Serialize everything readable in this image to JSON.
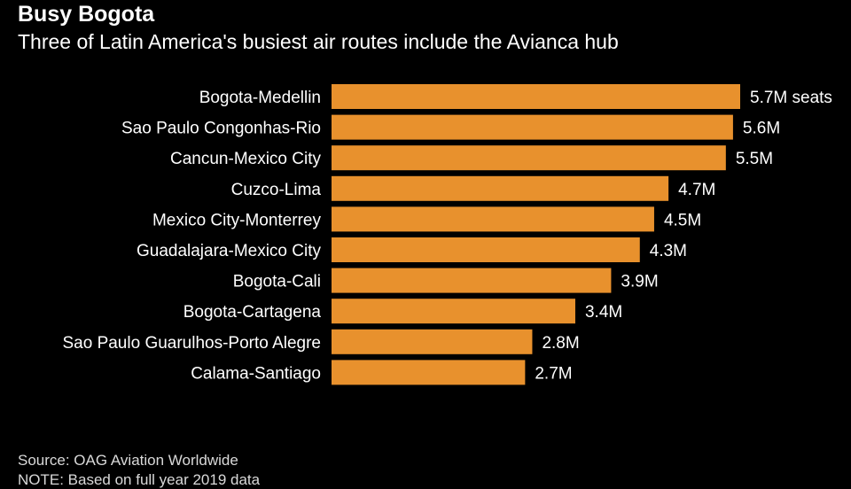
{
  "colors": {
    "background": "#000000",
    "bar": "#e8912d",
    "text": "#ffffff"
  },
  "chart_data": {
    "type": "bar",
    "orientation": "horizontal",
    "title": "Busy Bogota",
    "subtitle": "Three of Latin America's busiest air routes include the Avianca hub",
    "categories": [
      "Bogota-Medellin",
      "Sao Paulo Congonhas-Rio",
      "Cancun-Mexico City",
      "Cuzco-Lima",
      "Mexico City-Monterrey",
      "Guadalajara-Mexico City",
      "Bogota-Cali",
      "Bogota-Cartagena",
      "Sao Paulo Guarulhos-Porto Alegre",
      "Calama-Santiago"
    ],
    "values": [
      5.7,
      5.6,
      5.5,
      4.7,
      4.5,
      4.3,
      3.9,
      3.4,
      2.8,
      2.7
    ],
    "data_labels": [
      "5.7M seats",
      "5.6M",
      "5.5M",
      "4.7M",
      "4.5M",
      "4.3M",
      "3.9M",
      "3.4M",
      "2.8M",
      "2.7M"
    ],
    "unit": "M seats",
    "xlim": [
      0,
      5.7
    ],
    "grid": false,
    "legend": "none"
  },
  "footer": {
    "source": "Source: OAG Aviation Worldwide",
    "note": "NOTE: Based on full year 2019 data"
  }
}
